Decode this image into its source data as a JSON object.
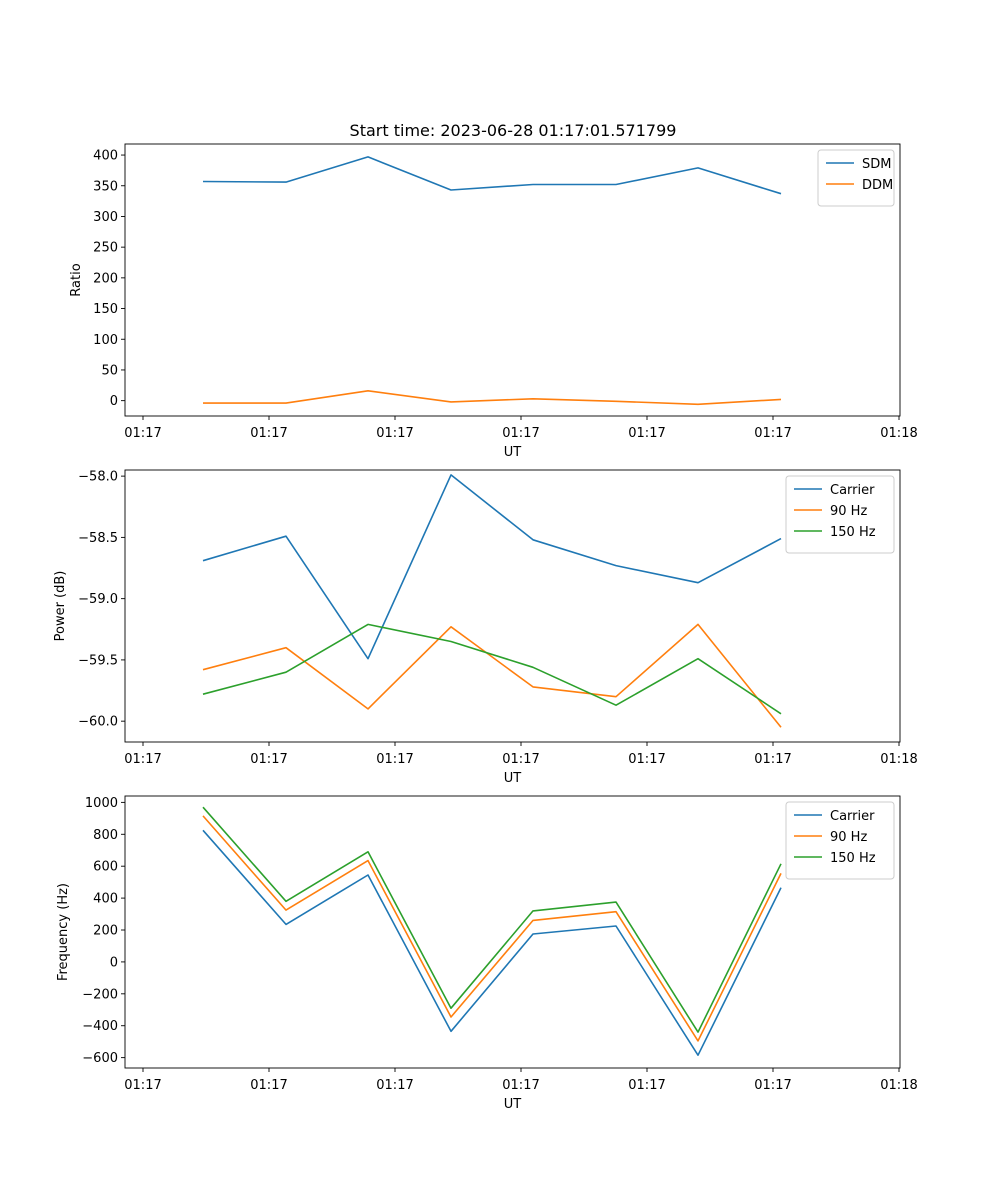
{
  "figure": {
    "title": "Start time: 2023-06-28 01:17:01.571799"
  },
  "colors": {
    "blue": "#1f77b4",
    "orange": "#ff7f0e",
    "green": "#2ca02c"
  },
  "chart_data": [
    {
      "type": "line",
      "title": "Start time: 2023-06-28 01:17:01.571799",
      "xlabel": "UT",
      "ylabel": "Ratio",
      "x_tick_labels": [
        "01:17",
        "01:17",
        "01:17",
        "01:17",
        "01:17",
        "01:17",
        "01:18"
      ],
      "ylim": [
        -25,
        418
      ],
      "yticks": [
        0,
        50,
        100,
        150,
        200,
        250,
        300,
        350,
        400
      ],
      "y_tick_labels": [
        "0",
        "50",
        "100",
        "150",
        "200",
        "250",
        "300",
        "350",
        "400"
      ],
      "legend": "top-right",
      "grid": false,
      "series": [
        {
          "name": "SDM",
          "color": "#1f77b4",
          "values": [
            357,
            356,
            397,
            343,
            352,
            352,
            379,
            337
          ]
        },
        {
          "name": "DDM",
          "color": "#ff7f0e",
          "values": [
            -4,
            -4,
            16,
            -2,
            3,
            -1,
            -6,
            2
          ]
        }
      ]
    },
    {
      "type": "line",
      "xlabel": "UT",
      "ylabel": "Power (dB)",
      "x_tick_labels": [
        "01:17",
        "01:17",
        "01:17",
        "01:17",
        "01:17",
        "01:17",
        "01:18"
      ],
      "ylim": [
        -60.17,
        -57.95
      ],
      "yticks": [
        -60.0,
        -59.5,
        -59.0,
        -58.5,
        -58.0
      ],
      "y_tick_labels": [
        "−60.0",
        "−59.5",
        "−59.0",
        "−58.5",
        "−58.0"
      ],
      "legend": "top-right",
      "grid": false,
      "series": [
        {
          "name": "Carrier",
          "color": "#1f77b4",
          "values": [
            -58.69,
            -58.49,
            -59.49,
            -57.99,
            -58.52,
            -58.73,
            -58.87,
            -58.51
          ]
        },
        {
          "name": "90 Hz",
          "color": "#ff7f0e",
          "values": [
            -59.58,
            -59.4,
            -59.9,
            -59.23,
            -59.72,
            -59.8,
            -59.21,
            -60.05
          ]
        },
        {
          "name": "150 Hz",
          "color": "#2ca02c",
          "values": [
            -59.78,
            -59.6,
            -59.21,
            -59.35,
            -59.56,
            -59.87,
            -59.49,
            -59.94
          ]
        }
      ]
    },
    {
      "type": "line",
      "xlabel": "UT",
      "ylabel": "Frequency (Hz)",
      "x_tick_labels": [
        "01:17",
        "01:17",
        "01:17",
        "01:17",
        "01:17",
        "01:17",
        "01:18"
      ],
      "ylim": [
        -665,
        1040
      ],
      "yticks": [
        -600,
        -400,
        -200,
        0,
        200,
        400,
        600,
        800,
        1000
      ],
      "y_tick_labels": [
        "−600",
        "−400",
        "−200",
        "0",
        "200",
        "400",
        "600",
        "800",
        "1000"
      ],
      "legend": "top-right",
      "grid": false,
      "series": [
        {
          "name": "Carrier",
          "color": "#1f77b4",
          "values": [
            825,
            235,
            545,
            -435,
            175,
            225,
            -585,
            465
          ]
        },
        {
          "name": "90 Hz",
          "color": "#ff7f0e",
          "values": [
            915,
            325,
            635,
            -345,
            260,
            315,
            -495,
            555
          ]
        },
        {
          "name": "150 Hz",
          "color": "#2ca02c",
          "values": [
            970,
            380,
            690,
            -290,
            320,
            375,
            -440,
            615
          ]
        }
      ]
    }
  ]
}
